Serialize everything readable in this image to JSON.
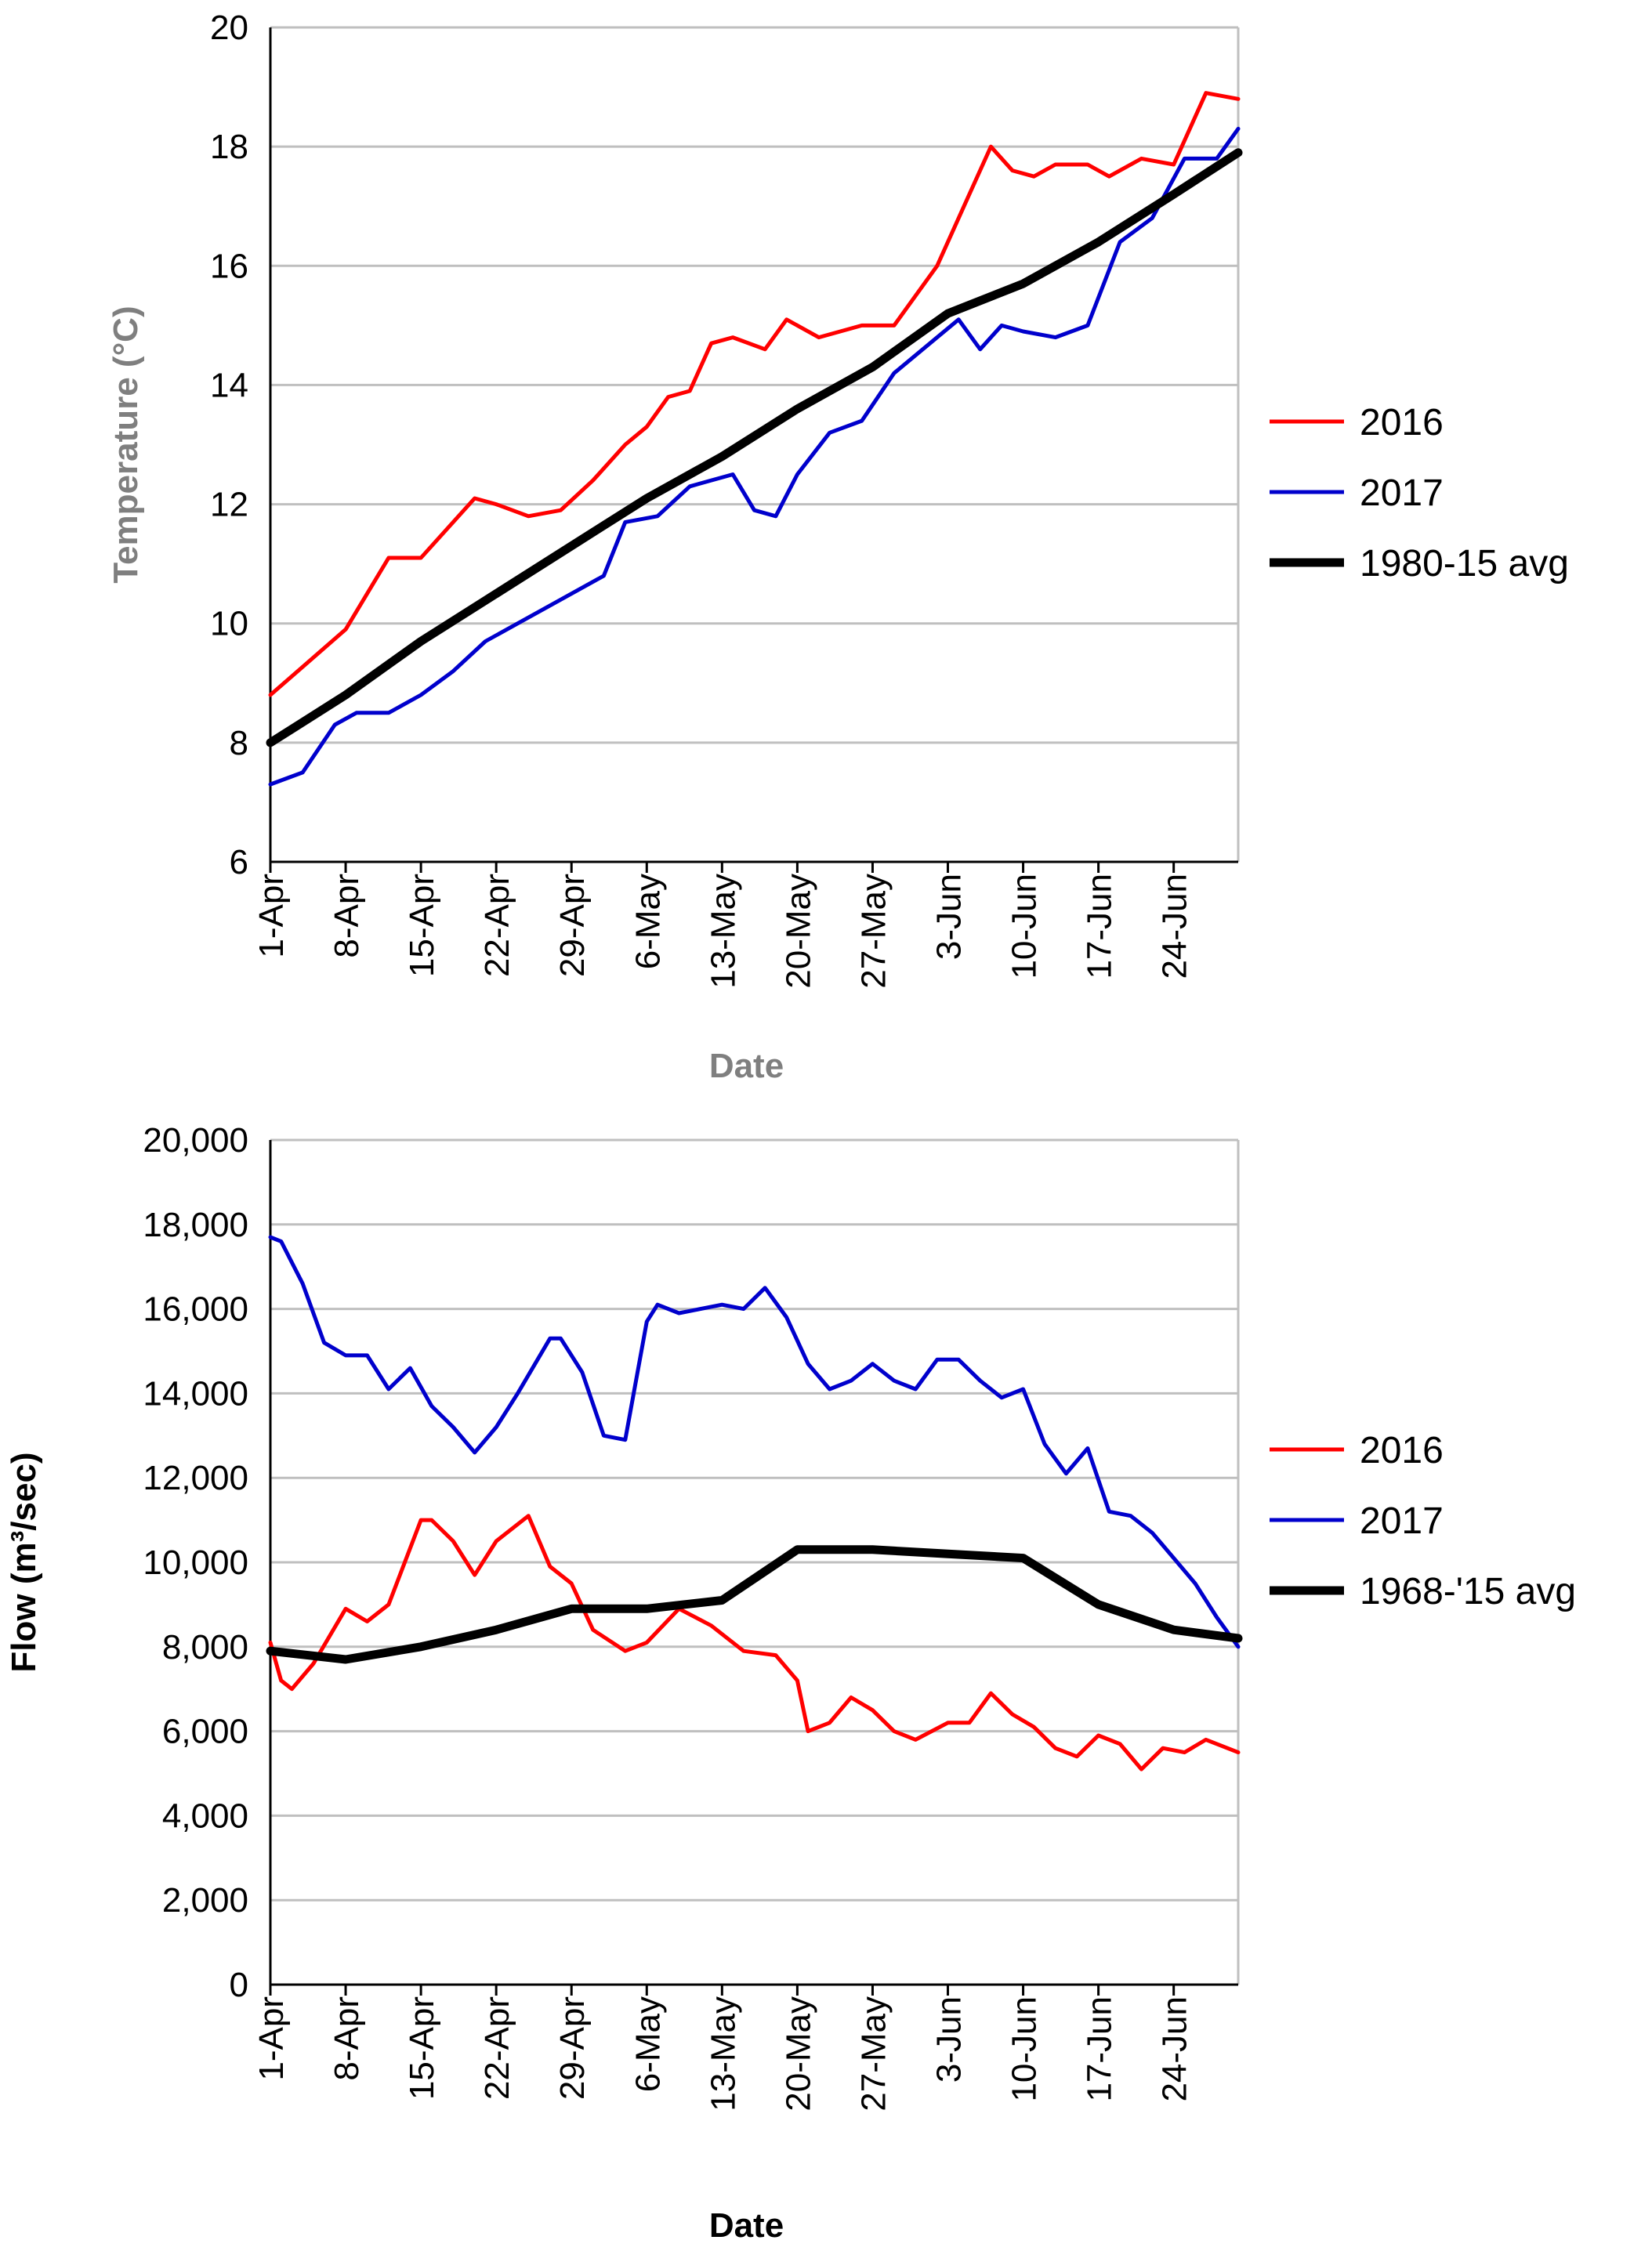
{
  "chart_data": [
    {
      "type": "line",
      "ylabel": "Temperature (°C)",
      "xlabel": "Date",
      "x_range": [
        "1-Apr",
        "30-Jun"
      ],
      "x_tick_labels": [
        "1-Apr",
        "8-Apr",
        "15-Apr",
        "22-Apr",
        "29-Apr",
        "6-May",
        "13-May",
        "20-May",
        "27-May",
        "3-Jun",
        "10-Jun",
        "17-Jun",
        "24-Jun"
      ],
      "y_tick_labels": [
        "6",
        "8",
        "10",
        "12",
        "14",
        "16",
        "18",
        "20"
      ],
      "ylim": [
        6,
        20
      ],
      "grid": "horizontal",
      "legend_position": "right",
      "series": [
        {
          "name": "2016",
          "color": "#ff0000",
          "x": [
            "1-Apr",
            "8-Apr",
            "12-Apr",
            "15-Apr",
            "20-Apr",
            "22-Apr",
            "25-Apr",
            "28-Apr",
            "1-May",
            "4-May",
            "6-May",
            "8-May",
            "10-May",
            "12-May",
            "14-May",
            "17-May",
            "19-May",
            "22-May",
            "26-May",
            "29-May",
            "2-Jun",
            "5-Jun",
            "7-Jun",
            "9-Jun",
            "11-Jun",
            "13-Jun",
            "16-Jun",
            "18-Jun",
            "21-Jun",
            "24-Jun",
            "27-Jun",
            "30-Jun"
          ],
          "y": [
            8.8,
            9.9,
            11.1,
            11.1,
            12.1,
            12.0,
            11.8,
            11.9,
            12.4,
            13.0,
            13.3,
            13.8,
            13.9,
            14.7,
            14.8,
            14.6,
            15.1,
            14.8,
            15.0,
            15.0,
            16.0,
            17.2,
            18.0,
            17.6,
            17.5,
            17.7,
            17.7,
            17.5,
            17.8,
            17.7,
            18.9,
            18.8
          ]
        },
        {
          "name": "2017",
          "color": "#0000cc",
          "x": [
            "1-Apr",
            "4-Apr",
            "7-Apr",
            "9-Apr",
            "12-Apr",
            "15-Apr",
            "18-Apr",
            "21-Apr",
            "24-Apr",
            "28-Apr",
            "2-May",
            "4-May",
            "7-May",
            "10-May",
            "12-May",
            "14-May",
            "16-May",
            "18-May",
            "20-May",
            "23-May",
            "26-May",
            "29-May",
            "2-Jun",
            "4-Jun",
            "6-Jun",
            "8-Jun",
            "10-Jun",
            "13-Jun",
            "16-Jun",
            "19-Jun",
            "22-Jun",
            "25-Jun",
            "28-Jun",
            "30-Jun"
          ],
          "y": [
            7.3,
            7.5,
            8.3,
            8.5,
            8.5,
            8.8,
            9.2,
            9.7,
            10.0,
            10.4,
            10.8,
            11.7,
            11.8,
            12.3,
            12.4,
            12.5,
            11.9,
            11.8,
            12.5,
            13.2,
            13.4,
            14.2,
            14.8,
            15.1,
            14.6,
            15.0,
            14.9,
            14.8,
            15.0,
            16.4,
            16.8,
            17.8,
            17.8,
            18.3
          ]
        },
        {
          "name": "1980-15 avg",
          "color": "#000000",
          "x": [
            "1-Apr",
            "8-Apr",
            "15-Apr",
            "22-Apr",
            "29-Apr",
            "6-May",
            "13-May",
            "20-May",
            "27-May",
            "3-Jun",
            "10-Jun",
            "17-Jun",
            "24-Jun",
            "30-Jun"
          ],
          "y": [
            8.0,
            8.8,
            9.7,
            10.5,
            11.3,
            12.1,
            12.8,
            13.6,
            14.3,
            15.2,
            15.7,
            16.4,
            17.2,
            17.9
          ]
        }
      ]
    },
    {
      "type": "line",
      "ylabel": "Flow (m³/sec)",
      "xlabel": "Date",
      "x_range": [
        "1-Apr",
        "30-Jun"
      ],
      "x_tick_labels": [
        "1-Apr",
        "8-Apr",
        "15-Apr",
        "22-Apr",
        "29-Apr",
        "6-May",
        "13-May",
        "20-May",
        "27-May",
        "3-Jun",
        "10-Jun",
        "17-Jun",
        "24-Jun"
      ],
      "y_tick_labels": [
        "0",
        "2,000",
        "4,000",
        "6,000",
        "8,000",
        "10,000",
        "12,000",
        "14,000",
        "16,000",
        "18,000",
        "20,000"
      ],
      "ylim": [
        0,
        20000
      ],
      "grid": "horizontal",
      "legend_position": "right",
      "series": [
        {
          "name": "2016",
          "color": "#ff0000",
          "x": [
            "1-Apr",
            "2-Apr",
            "3-Apr",
            "5-Apr",
            "8-Apr",
            "10-Apr",
            "12-Apr",
            "15-Apr",
            "16-Apr",
            "18-Apr",
            "20-Apr",
            "22-Apr",
            "25-Apr",
            "27-Apr",
            "29-Apr",
            "1-May",
            "4-May",
            "6-May",
            "9-May",
            "12-May",
            "15-May",
            "18-May",
            "20-May",
            "21-May",
            "23-May",
            "25-May",
            "27-May",
            "29-May",
            "31-May",
            "3-Jun",
            "5-Jun",
            "7-Jun",
            "9-Jun",
            "11-Jun",
            "13-Jun",
            "15-Jun",
            "17-Jun",
            "19-Jun",
            "21-Jun",
            "23-Jun",
            "25-Jun",
            "27-Jun",
            "30-Jun"
          ],
          "y": [
            8100,
            7200,
            7000,
            7600,
            8900,
            8600,
            9000,
            11000,
            11000,
            10500,
            9700,
            10500,
            11100,
            9900,
            9500,
            8400,
            7900,
            8100,
            8900,
            8500,
            7900,
            7800,
            7200,
            6000,
            6200,
            6800,
            6500,
            6000,
            5800,
            6200,
            6200,
            6900,
            6400,
            6100,
            5600,
            5400,
            5900,
            5700,
            5100,
            5600,
            5500,
            5800,
            5500
          ]
        },
        {
          "name": "2017",
          "color": "#0000cc",
          "x": [
            "1-Apr",
            "2-Apr",
            "4-Apr",
            "6-Apr",
            "8-Apr",
            "10-Apr",
            "12-Apr",
            "14-Apr",
            "16-Apr",
            "18-Apr",
            "20-Apr",
            "22-Apr",
            "24-Apr",
            "27-Apr",
            "28-Apr",
            "30-Apr",
            "2-May",
            "4-May",
            "6-May",
            "7-May",
            "9-May",
            "11-May",
            "13-May",
            "15-May",
            "17-May",
            "19-May",
            "21-May",
            "23-May",
            "25-May",
            "27-May",
            "29-May",
            "31-May",
            "2-Jun",
            "4-Jun",
            "6-Jun",
            "8-Jun",
            "10-Jun",
            "12-Jun",
            "14-Jun",
            "16-Jun",
            "18-Jun",
            "20-Jun",
            "22-Jun",
            "24-Jun",
            "26-Jun",
            "28-Jun",
            "30-Jun"
          ],
          "y": [
            17700,
            17600,
            16600,
            15200,
            14900,
            14900,
            14100,
            14600,
            13700,
            13200,
            12600,
            13200,
            14000,
            15300,
            15300,
            14500,
            13000,
            12900,
            15700,
            16100,
            15900,
            16000,
            16100,
            16000,
            16500,
            15800,
            14700,
            14100,
            14300,
            14700,
            14300,
            14100,
            14800,
            14800,
            14300,
            13900,
            14100,
            12800,
            12100,
            12700,
            11200,
            11100,
            10700,
            10100,
            9500,
            8700,
            8000
          ]
        },
        {
          "name": "1968-'15 avg",
          "color": "#000000",
          "x": [
            "1-Apr",
            "8-Apr",
            "15-Apr",
            "22-Apr",
            "29-Apr",
            "6-May",
            "13-May",
            "20-May",
            "27-May",
            "3-Jun",
            "10-Jun",
            "17-Jun",
            "24-Jun",
            "30-Jun"
          ],
          "y": [
            7900,
            7700,
            8000,
            8400,
            8900,
            8900,
            9100,
            10300,
            10300,
            10200,
            10100,
            9000,
            8400,
            8200
          ]
        }
      ]
    }
  ]
}
